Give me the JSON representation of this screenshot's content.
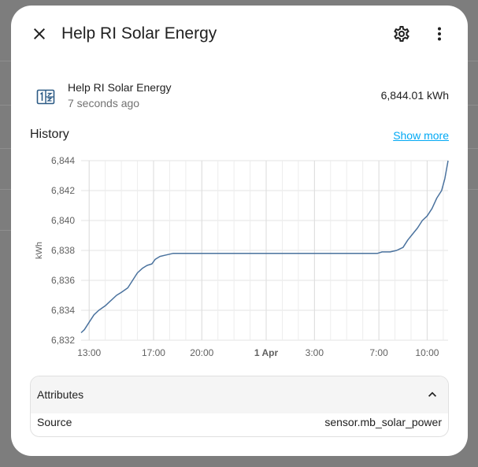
{
  "dialog": {
    "title": "Help RI Solar Energy",
    "close_icon": "close-icon",
    "settings_icon": "gear-icon",
    "menu_icon": "dots-vertical-icon"
  },
  "entity": {
    "icon": "counter-icon",
    "name": "Help RI Solar Energy",
    "last_changed": "7 seconds ago",
    "state": "6,844.01 kWh"
  },
  "history": {
    "title": "History",
    "show_more": "Show more"
  },
  "attributes": {
    "title": "Attributes",
    "rows": [
      {
        "key": "Source",
        "value": "sensor.mb_solar_power"
      }
    ]
  },
  "colors": {
    "accent_link": "#03a9f4",
    "line": "#4a729e",
    "icon": "#2c5a85"
  },
  "chart_data": {
    "type": "line",
    "ylabel": "kWh",
    "ylim": [
      6832,
      6844
    ],
    "y_ticks": [
      "6,844",
      "6,842",
      "6,840",
      "6,838",
      "6,836",
      "6,834",
      "6,832"
    ],
    "y_tick_values": [
      6844,
      6842,
      6840,
      6838,
      6836,
      6834,
      6832
    ],
    "x_ticks": [
      {
        "label": "13:00",
        "t": 13,
        "bold": false
      },
      {
        "label": "17:00",
        "t": 17,
        "bold": false
      },
      {
        "label": "20:00",
        "t": 20,
        "bold": false
      },
      {
        "label": "1 Apr",
        "t": 24,
        "bold": true
      },
      {
        "label": "3:00",
        "t": 27,
        "bold": false
      },
      {
        "label": "7:00",
        "t": 31,
        "bold": false
      },
      {
        "label": "10:00",
        "t": 34,
        "bold": false
      }
    ],
    "xlim": [
      12.5,
      35.3
    ],
    "grid": true,
    "series": [
      {
        "x": [
          12.5,
          12.7,
          13.0,
          13.3,
          13.6,
          14.0,
          14.3,
          14.7,
          15.0,
          15.4,
          15.7,
          16.0,
          16.3,
          16.6,
          16.9,
          17.1,
          17.4,
          17.8,
          18.2,
          18.6,
          19.0,
          20.0,
          22.0,
          24.0,
          26.0,
          28.0,
          30.0,
          30.9,
          31.2,
          31.7,
          32.1,
          32.5,
          32.8,
          33.1,
          33.4,
          33.7,
          34.0,
          34.3,
          34.6,
          34.9,
          35.1,
          35.3
        ],
        "y": [
          6832.5,
          6832.7,
          6833.2,
          6833.7,
          6834.0,
          6834.3,
          6834.6,
          6835.0,
          6835.2,
          6835.5,
          6836.0,
          6836.5,
          6836.8,
          6837.0,
          6837.1,
          6837.4,
          6837.6,
          6837.7,
          6837.8,
          6837.8,
          6837.8,
          6837.8,
          6837.8,
          6837.8,
          6837.8,
          6837.8,
          6837.8,
          6837.8,
          6837.9,
          6837.9,
          6838.0,
          6838.2,
          6838.7,
          6839.1,
          6839.5,
          6840.0,
          6840.3,
          6840.8,
          6841.5,
          6842.0,
          6842.8,
          6844.0
        ]
      }
    ]
  }
}
